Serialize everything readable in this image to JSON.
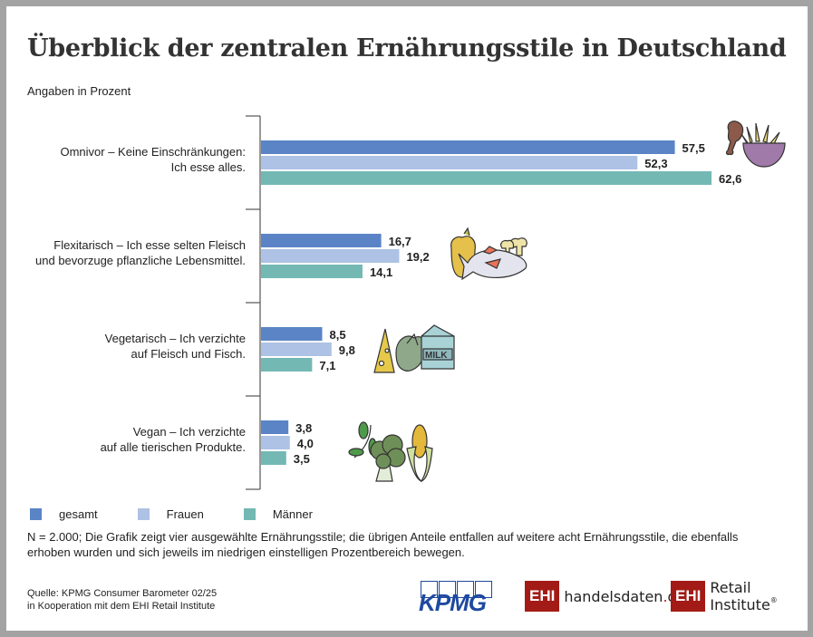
{
  "title": "Überblick der zentralen Ernährungsstile in Deutschland",
  "subtitle": "Angaben in Prozent",
  "chart_data": {
    "type": "bar",
    "orientation": "horizontal",
    "title": "Überblick der zentralen Ernährungsstile in Deutschland",
    "subtitle": "Angaben in Prozent",
    "xlabel": "",
    "ylabel": "",
    "xlim": [
      0,
      62.6
    ],
    "grid": false,
    "legend_position": "bottom-left",
    "categories": [
      [
        "Omnivor – Keine Einschränkungen:",
        "Ich esse alles."
      ],
      [
        "Flexitarisch – Ich esse selten Fleisch",
        "und bevorzuge pflanzliche Lebensmittel."
      ],
      [
        "Vegetarisch – Ich verzichte",
        "auf Fleisch und Fisch."
      ],
      [
        "Vegan – Ich verzichte",
        "auf alle tierischen Produkte."
      ]
    ],
    "series": [
      {
        "name": "gesamt",
        "color": "#5a84c6",
        "values": [
          57.5,
          16.7,
          8.5,
          3.8
        ],
        "labels": [
          "57,5",
          "16,7",
          "8,5",
          "3,8"
        ]
      },
      {
        "name": "Frauen",
        "color": "#adc2e4",
        "values": [
          52.3,
          19.2,
          9.8,
          4.0
        ],
        "labels": [
          "52,3",
          "19,2",
          "9,8",
          "4,0"
        ]
      },
      {
        "name": "Männer",
        "color": "#74b8b4",
        "values": [
          62.6,
          14.1,
          7.1,
          3.5
        ],
        "labels": [
          "62,6",
          "14,1",
          "7,1",
          "3,5"
        ]
      }
    ],
    "category_icons": [
      "chicken-leg-and-fries-bowl",
      "pepper-fish-mushroom",
      "cheese-artichoke-milk",
      "herb-broccoli-corn"
    ]
  },
  "note": "N = 2.000; Die Grafik zeigt vier ausgewählte Ernährungsstile; die übrigen Anteile entfallen auf weitere acht Ernährungsstile, die ebenfalls erhoben wurden und sich jeweils im niedrigen einstelligen Prozentbereich bewegen.",
  "source": {
    "line1": "Quelle: KPMG Consumer Barometer 02/25",
    "line2": "in Kooperation mit dem EHI Retail Institute"
  },
  "logos": {
    "kpmg": "KPMG",
    "ehi_box": "EHI",
    "handelsdaten_a": "handelsdaten",
    "handelsdaten_dot": ".",
    "handelsdaten_b": "de",
    "retail": "Retail Institute",
    "registered": "®"
  }
}
